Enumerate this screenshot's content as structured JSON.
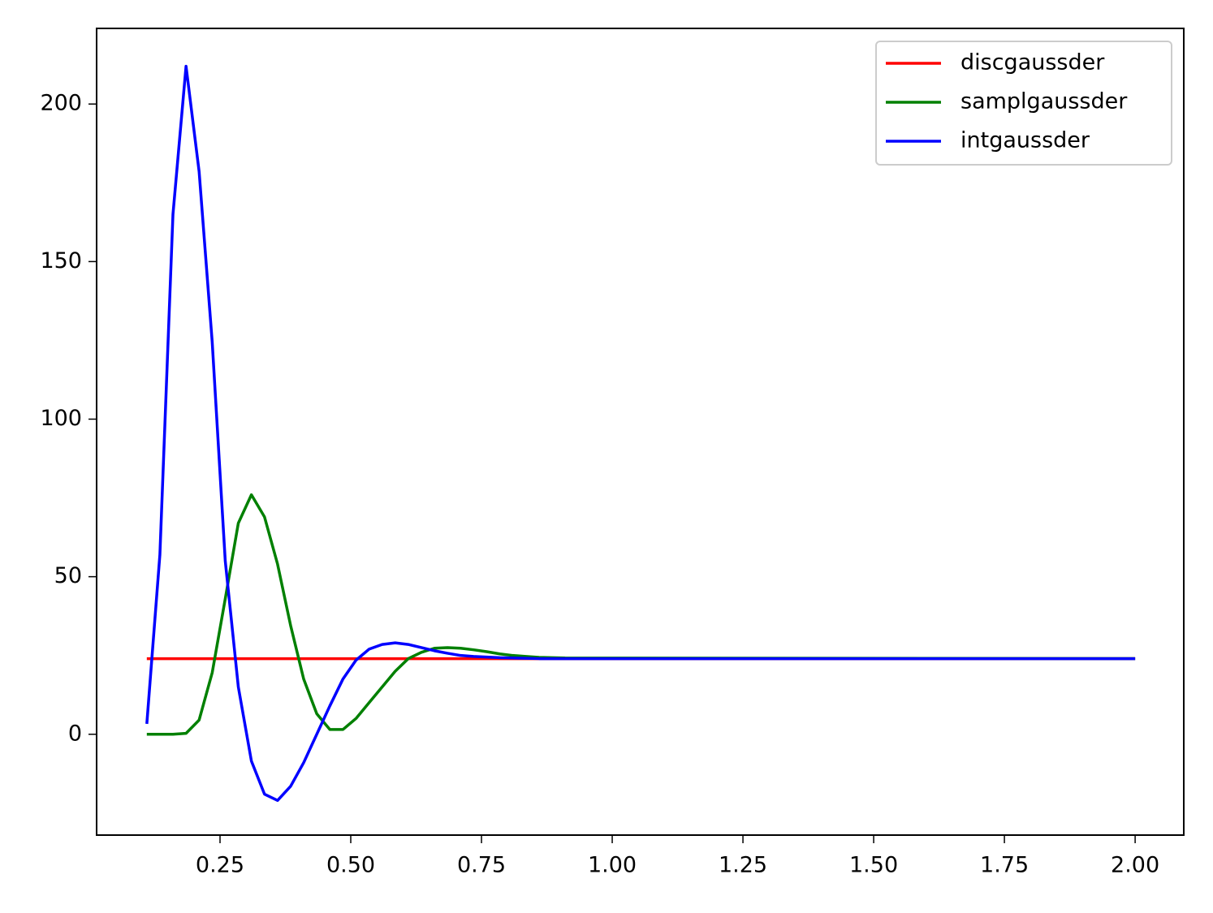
{
  "chart_data": {
    "type": "line",
    "x": [
      0.11,
      0.135,
      0.16,
      0.185,
      0.21,
      0.235,
      0.26,
      0.285,
      0.31,
      0.335,
      0.36,
      0.385,
      0.41,
      0.435,
      0.46,
      0.485,
      0.51,
      0.535,
      0.56,
      0.585,
      0.61,
      0.635,
      0.66,
      0.685,
      0.71,
      0.735,
      0.76,
      0.785,
      0.81,
      0.835,
      0.86,
      0.885,
      0.91,
      2.0
    ],
    "series": [
      {
        "name": "discgaussder",
        "color": "#ff0000",
        "values": [
          24,
          24,
          24,
          24,
          24,
          24,
          24,
          24,
          24,
          24,
          24,
          24,
          24,
          24,
          24,
          24,
          24,
          24,
          24,
          24,
          24,
          24,
          24,
          24,
          24,
          24,
          24,
          24,
          24,
          24,
          24,
          24,
          24,
          24
        ]
      },
      {
        "name": "samplgaussder",
        "color": "#008000",
        "values": [
          0,
          0,
          0,
          0.3,
          4.5,
          19.5,
          43,
          67,
          76,
          69,
          54,
          34.5,
          17.5,
          6.5,
          1.5,
          1.5,
          5,
          10,
          15,
          20,
          24,
          26,
          27.3,
          27.5,
          27.3,
          26.8,
          26.2,
          25.5,
          25,
          24.7,
          24.4,
          24.3,
          24.2,
          24
        ]
      },
      {
        "name": "intgaussder",
        "color": "#0000ff",
        "values": [
          3.3,
          57,
          165,
          212,
          178.6,
          124.6,
          55,
          15,
          -8.5,
          -19,
          -21,
          -16.5,
          -9,
          0,
          9,
          17.5,
          23.5,
          27,
          28.5,
          29,
          28.5,
          27.5,
          26.5,
          25.7,
          25,
          24.7,
          24.5,
          24.3,
          24.2,
          24.1,
          24,
          24,
          24,
          24
        ]
      }
    ],
    "xlim": [
      0.014,
      2.093
    ],
    "xticks": [
      0.25,
      {
        "value": 0.5,
        "label": "0.50"
      },
      0.75,
      {
        "value": 1.0,
        "label": "1.00"
      },
      1.25,
      {
        "value": 1.5,
        "label": "1.50"
      },
      1.75,
      {
        "value": 2.0,
        "label": "2.00"
      }
    ],
    "ylim": [
      -32,
      224
    ],
    "yticks": [
      0,
      50,
      100,
      150,
      200
    ],
    "legend": "upper right"
  }
}
